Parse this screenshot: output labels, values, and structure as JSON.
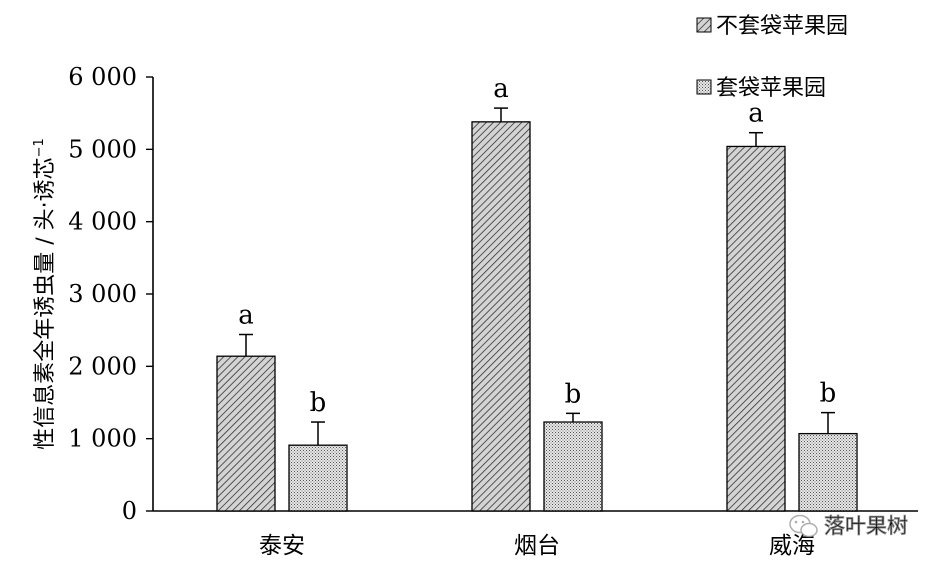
{
  "chart_data": {
    "type": "bar",
    "categories": [
      "泰安",
      "烟台",
      "威海"
    ],
    "series": [
      {
        "name": "不套袋苹果园",
        "values": [
          2140,
          5380,
          5040
        ],
        "errors": [
          300,
          190,
          190
        ],
        "letters": [
          "a",
          "a",
          "a"
        ],
        "pattern": "diagonal-hatch"
      },
      {
        "name": "套袋苹果园",
        "values": [
          910,
          1230,
          1070
        ],
        "errors": [
          320,
          120,
          290
        ],
        "letters": [
          "b",
          "b",
          "b"
        ],
        "pattern": "dotted"
      }
    ],
    "ylabel": "性信息素全年诱虫量 / 头·诱芯",
    "ylabel_sup": "−1",
    "ylim": [
      0,
      6000
    ],
    "yticks": [
      0,
      1000,
      2000,
      3000,
      4000,
      5000,
      6000
    ],
    "ytick_labels": [
      "0",
      "1 000",
      "2 000",
      "3 000",
      "4 000",
      "5 000",
      "6 000"
    ],
    "legend_position": "top-right",
    "grid": false
  },
  "watermark": {
    "text": "落叶果树",
    "icon": "wechat-icon"
  }
}
